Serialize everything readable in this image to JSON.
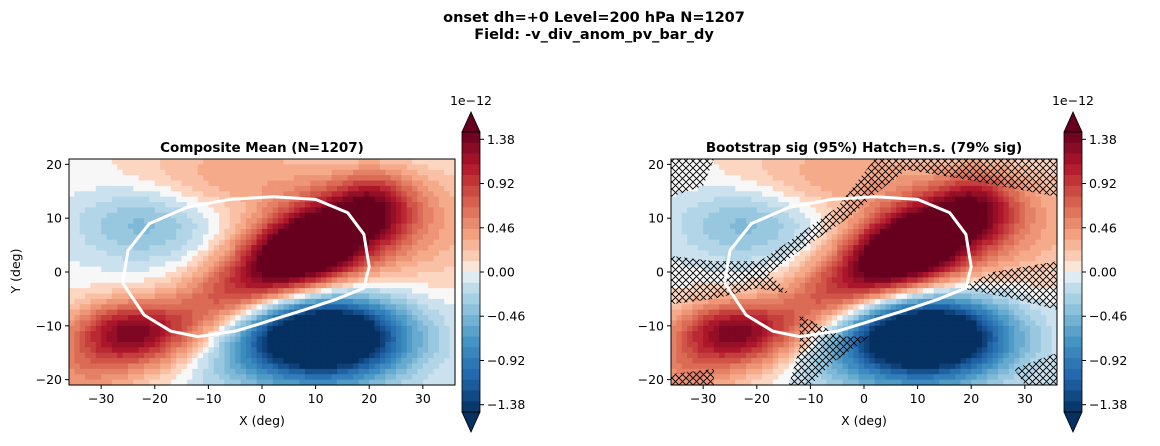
{
  "figure": {
    "title_line1": "onset  dh=+0   Level=200 hPa   N=1207",
    "title_line2": "Field: -v_div_anom_pv_bar_dy"
  },
  "chart_data": [
    {
      "type": "heatmap",
      "title": "Composite Mean  (N=1207)",
      "xlabel": "X (deg)",
      "ylabel": "Y (deg)",
      "xlim": [
        -36,
        36
      ],
      "ylim": [
        -21,
        21
      ],
      "xticks": [
        -30,
        -20,
        -10,
        0,
        10,
        20,
        30
      ],
      "yticks": [
        -20,
        -10,
        0,
        10,
        20
      ],
      "colormap": "RdBu_r",
      "colorbar": {
        "exponent_label": "1e−12",
        "tick_labels": [
          "1.38",
          "0.92",
          "0.46",
          "0.00",
          "−0.46",
          "−0.92",
          "−1.38"
        ],
        "range": [
          -1.5,
          1.5
        ],
        "extend": "both"
      },
      "features": [
        {
          "kind": "positive_max",
          "center": [
            8,
            4
          ],
          "peak": 1.4
        },
        {
          "kind": "positive_band",
          "center": [
            -10,
            0
          ],
          "value": 0.9
        },
        {
          "kind": "positive_lobe",
          "center": [
            -25,
            -11
          ],
          "value": 1.0
        },
        {
          "kind": "negative_min",
          "center": [
            12,
            -12
          ],
          "peak": -1.5
        },
        {
          "kind": "weak_negative",
          "center": [
            -22,
            9
          ],
          "value": -0.3
        }
      ],
      "contour_line": {
        "color": "#ffffff",
        "points": [
          [
            -26,
            -2
          ],
          [
            -25,
            4
          ],
          [
            -21,
            9
          ],
          [
            -14,
            12
          ],
          [
            -6,
            13.5
          ],
          [
            2,
            14
          ],
          [
            10,
            13.5
          ],
          [
            16,
            11
          ],
          [
            19,
            7
          ],
          [
            20,
            1
          ],
          [
            19,
            -3
          ],
          [
            14,
            -5
          ],
          [
            8,
            -7
          ],
          [
            0,
            -9.5
          ],
          [
            -5,
            -11
          ],
          [
            -12,
            -12
          ],
          [
            -17,
            -11
          ],
          [
            -22,
            -8
          ],
          [
            -26,
            -2
          ]
        ]
      },
      "grid": false
    },
    {
      "type": "heatmap",
      "title": "Bootstrap sig (95%)  Hatch=n.s.  (79% sig)",
      "xlabel": "X (deg)",
      "ylabel": "",
      "xlim": [
        -36,
        36
      ],
      "ylim": [
        -21,
        21
      ],
      "xticks": [
        -30,
        -20,
        -10,
        0,
        10,
        20,
        30
      ],
      "yticks": [
        -20,
        -10,
        0,
        10,
        20
      ],
      "colormap": "RdBu_r",
      "colorbar": {
        "exponent_label": "1e−12",
        "tick_labels": [
          "1.38",
          "0.92",
          "0.46",
          "0.00",
          "−0.46",
          "−0.92",
          "−1.38"
        ],
        "range": [
          -1.5,
          1.5
        ],
        "extend": "both"
      },
      "hatch_fraction_significant": 79,
      "hatch_regions": [
        [
          [
            -36,
            21
          ],
          [
            -28,
            21
          ],
          [
            -30,
            16
          ],
          [
            -36,
            14
          ]
        ],
        [
          [
            -14,
            -4
          ],
          [
            -20,
            2
          ],
          [
            -28,
            2
          ],
          [
            -36,
            3
          ],
          [
            -36,
            -6
          ],
          [
            -28,
            -5
          ],
          [
            -20,
            -3
          ]
        ],
        [
          [
            -5,
            12
          ],
          [
            2,
            21
          ],
          [
            36,
            21
          ],
          [
            36,
            14
          ],
          [
            20,
            17
          ],
          [
            8,
            19
          ],
          [
            4,
            16
          ],
          [
            -3,
            10
          ],
          [
            -12,
            4
          ],
          [
            -20,
            -2
          ],
          [
            -24,
            -1
          ],
          [
            -15,
            5
          ]
        ],
        [
          [
            -12,
            -8
          ],
          [
            -4,
            -12
          ],
          [
            1,
            -12
          ],
          [
            -6,
            -17
          ],
          [
            -10,
            -21
          ],
          [
            -14,
            -21
          ],
          [
            -12,
            -14
          ]
        ],
        [
          [
            16,
            -4
          ],
          [
            24,
            0
          ],
          [
            36,
            2
          ],
          [
            36,
            -7
          ],
          [
            28,
            -5
          ],
          [
            18,
            -3
          ]
        ],
        [
          [
            28,
            -18
          ],
          [
            36,
            -15
          ],
          [
            36,
            -21
          ],
          [
            30,
            -21
          ]
        ],
        [
          [
            -36,
            -19
          ],
          [
            -28,
            -18
          ],
          [
            -28,
            -21
          ],
          [
            -36,
            -21
          ]
        ]
      ],
      "contour_line": {
        "color": "#ffffff",
        "points": [
          [
            -26,
            -2
          ],
          [
            -25,
            4
          ],
          [
            -21,
            9
          ],
          [
            -14,
            12
          ],
          [
            -6,
            13.5
          ],
          [
            2,
            14
          ],
          [
            10,
            13.5
          ],
          [
            16,
            11
          ],
          [
            19,
            7
          ],
          [
            20,
            1
          ],
          [
            19,
            -3
          ],
          [
            14,
            -5
          ],
          [
            8,
            -7
          ],
          [
            0,
            -9.5
          ],
          [
            -5,
            -11
          ],
          [
            -12,
            -12
          ],
          [
            -17,
            -11
          ],
          [
            -22,
            -8
          ],
          [
            -26,
            -2
          ]
        ]
      },
      "grid": false
    }
  ]
}
